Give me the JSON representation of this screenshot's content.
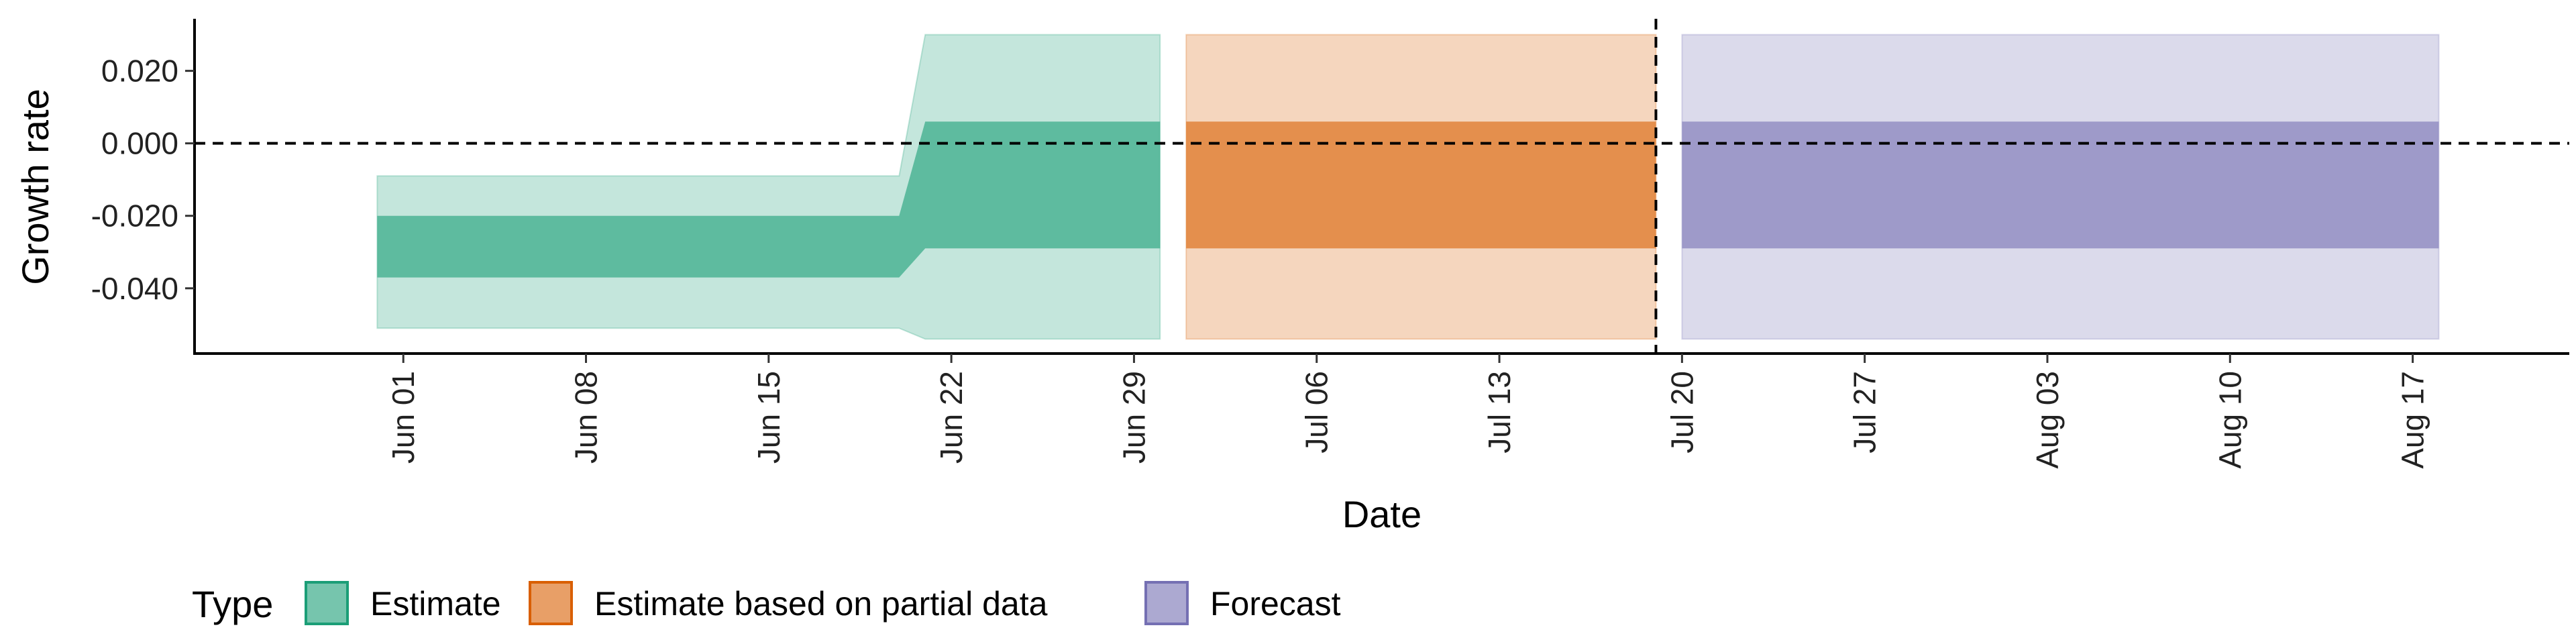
{
  "chart_data": {
    "type": "area",
    "title": "",
    "xlabel": "Date",
    "ylabel": "Growth rate",
    "x_range": [
      "2021-05-24",
      "2021-08-23"
    ],
    "ylim": [
      -0.058,
      0.034
    ],
    "y_ticks": [
      {
        "value": 0.02,
        "label": "0.020"
      },
      {
        "value": 0.0,
        "label": "0.000"
      },
      {
        "value": -0.02,
        "label": "-0.020"
      },
      {
        "value": -0.04,
        "label": "-0.040"
      }
    ],
    "x_ticks": [
      {
        "date": "2021-06-01",
        "label": "Jun 01"
      },
      {
        "date": "2021-06-08",
        "label": "Jun 08"
      },
      {
        "date": "2021-06-15",
        "label": "Jun 15"
      },
      {
        "date": "2021-06-22",
        "label": "Jun 22"
      },
      {
        "date": "2021-06-29",
        "label": "Jun 29"
      },
      {
        "date": "2021-07-06",
        "label": "Jul 06"
      },
      {
        "date": "2021-07-13",
        "label": "Jul 13"
      },
      {
        "date": "2021-07-20",
        "label": "Jul 20"
      },
      {
        "date": "2021-07-27",
        "label": "Jul 27"
      },
      {
        "date": "2021-08-03",
        "label": "Aug 03"
      },
      {
        "date": "2021-08-10",
        "label": "Aug 10"
      },
      {
        "date": "2021-08-17",
        "label": "Aug 17"
      }
    ],
    "hline": {
      "y": 0.0,
      "style": "dashed"
    },
    "vline": {
      "date": "2021-07-19",
      "style": "dashed"
    },
    "grid": false,
    "legend": {
      "title": "Type",
      "placement": "bottom-left"
    },
    "series": [
      {
        "name": "Estimate",
        "fill": "#1b9e77",
        "stroke": "#1b9e77",
        "points": [
          {
            "date": "2021-05-31",
            "outer_lower": -0.051,
            "inner_lower": -0.037,
            "inner_upper": -0.02,
            "outer_upper": -0.009
          },
          {
            "date": "2021-06-20",
            "outer_lower": -0.051,
            "inner_lower": -0.037,
            "inner_upper": -0.02,
            "outer_upper": -0.009
          },
          {
            "date": "2021-06-21",
            "outer_lower": -0.054,
            "inner_lower": -0.029,
            "inner_upper": 0.006,
            "outer_upper": 0.03
          },
          {
            "date": "2021-06-30",
            "outer_lower": -0.054,
            "inner_lower": -0.029,
            "inner_upper": 0.006,
            "outer_upper": 0.03
          }
        ]
      },
      {
        "name": "Estimate based on partial data",
        "fill": "#d95f02",
        "stroke": "#d95f02",
        "points": [
          {
            "date": "2021-07-01",
            "outer_lower": -0.054,
            "inner_lower": -0.029,
            "inner_upper": 0.006,
            "outer_upper": 0.03
          },
          {
            "date": "2021-07-19",
            "outer_lower": -0.054,
            "inner_lower": -0.029,
            "inner_upper": 0.006,
            "outer_upper": 0.03
          }
        ]
      },
      {
        "name": "Forecast",
        "fill": "#7570b3",
        "stroke": "#7570b3",
        "points": [
          {
            "date": "2021-07-20",
            "outer_lower": -0.054,
            "inner_lower": -0.029,
            "inner_upper": 0.006,
            "outer_upper": 0.03
          },
          {
            "date": "2021-08-18",
            "outer_lower": -0.054,
            "inner_lower": -0.029,
            "inner_upper": 0.006,
            "outer_upper": 0.03
          }
        ]
      }
    ]
  }
}
